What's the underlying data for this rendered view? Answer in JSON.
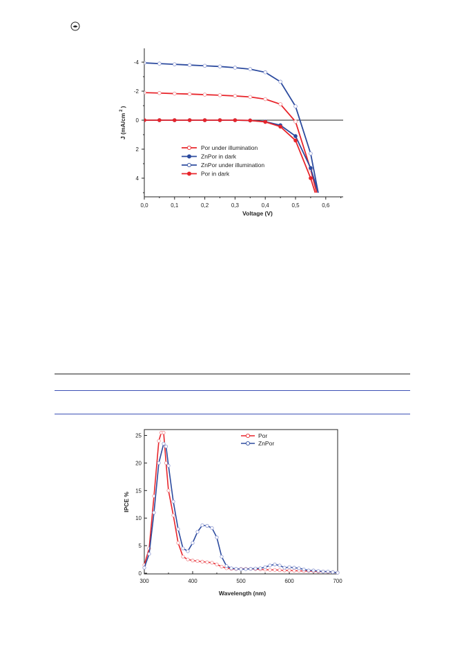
{
  "chart_data": [
    {
      "type": "line",
      "xlabel": "Voltage (V)",
      "ylabel": "J (mA/cm",
      "ylabel_sup": "2",
      "ylabel_close": ")",
      "xlim": [
        0.0,
        0.65
      ],
      "ylim": [
        5,
        -5
      ],
      "x_ticks": [
        "0,0",
        "0,1",
        "0,2",
        "0,3",
        "0,4",
        "0,5",
        "0,6"
      ],
      "y_ticks": [
        "-4",
        "-2",
        "0",
        "2",
        "4"
      ],
      "legend_position": "lower-left",
      "legend": [
        "Por under illumination",
        "ZnPor in dark",
        "ZnPor under illumination",
        "Por in dark"
      ],
      "series": [
        {
          "name": "Por under illumination",
          "color": "#e8242a",
          "marker": "open",
          "x": [
            0.0,
            0.05,
            0.1,
            0.15,
            0.2,
            0.25,
            0.3,
            0.35,
            0.4,
            0.45,
            0.5,
            0.55,
            0.57
          ],
          "y": [
            -1.9,
            -1.87,
            -1.83,
            -1.8,
            -1.76,
            -1.72,
            -1.67,
            -1.6,
            -1.45,
            -1.1,
            0.1,
            3.4,
            5.0
          ]
        },
        {
          "name": "ZnPor in dark",
          "color": "#2b4a9e",
          "marker": "filled",
          "x": [
            0.0,
            0.05,
            0.1,
            0.15,
            0.2,
            0.25,
            0.3,
            0.35,
            0.4,
            0.45,
            0.5,
            0.55,
            0.575
          ],
          "y": [
            0.0,
            0.0,
            0.0,
            0.0,
            0.0,
            0.0,
            0.0,
            0.02,
            0.1,
            0.35,
            1.1,
            3.3,
            5.0
          ]
        },
        {
          "name": "ZnPor under illumination",
          "color": "#2b4a9e",
          "marker": "open",
          "x": [
            0.0,
            0.05,
            0.1,
            0.15,
            0.2,
            0.25,
            0.3,
            0.35,
            0.4,
            0.45,
            0.5,
            0.55,
            0.575
          ],
          "y": [
            -3.95,
            -3.9,
            -3.85,
            -3.8,
            -3.75,
            -3.7,
            -3.62,
            -3.52,
            -3.3,
            -2.65,
            -0.95,
            2.3,
            5.0
          ]
        },
        {
          "name": "Por in dark",
          "color": "#e8242a",
          "marker": "filled",
          "x": [
            0.0,
            0.05,
            0.1,
            0.15,
            0.2,
            0.25,
            0.3,
            0.35,
            0.4,
            0.45,
            0.5,
            0.55,
            0.565
          ],
          "y": [
            0.0,
            0.0,
            0.0,
            0.0,
            0.0,
            0.0,
            0.0,
            0.02,
            0.12,
            0.45,
            1.4,
            4.0,
            5.0
          ]
        }
      ]
    },
    {
      "type": "line",
      "xlabel": "Wavelength (nm)",
      "ylabel": "IPCE %",
      "xlim": [
        300,
        700
      ],
      "ylim": [
        0,
        26
      ],
      "x_ticks": [
        "300",
        "400",
        "500",
        "600",
        "700"
      ],
      "y_ticks": [
        "0",
        "5",
        "10",
        "15",
        "20",
        "25"
      ],
      "legend_position": "top-right",
      "legend": [
        "Por",
        "ZnPor"
      ],
      "series": [
        {
          "name": "Por",
          "color": "#e8242a",
          "marker": "open",
          "x": [
            300,
            310,
            320,
            330,
            335,
            340,
            345,
            350,
            360,
            370,
            380,
            390,
            400,
            410,
            420,
            430,
            440,
            450,
            460,
            470,
            480,
            490,
            500,
            510,
            520,
            530,
            540,
            550,
            560,
            570,
            580,
            590,
            600,
            610,
            620,
            630,
            640,
            650,
            660,
            670,
            680,
            690,
            700
          ],
          "y": [
            1.5,
            4.5,
            14.0,
            24.0,
            25.5,
            25.5,
            20.0,
            15.0,
            10.5,
            5.5,
            3.0,
            2.5,
            2.3,
            2.2,
            2.1,
            2.0,
            1.9,
            1.6,
            1.2,
            0.9,
            0.8,
            0.75,
            0.8,
            0.8,
            0.8,
            0.75,
            0.7,
            0.65,
            0.6,
            0.6,
            0.55,
            0.5,
            0.5,
            0.45,
            0.45,
            0.4,
            0.4,
            0.35,
            0.3,
            0.3,
            0.25,
            0.2,
            0.1
          ]
        },
        {
          "name": "ZnPor",
          "color": "#2b4a9e",
          "marker": "open",
          "x": [
            300,
            310,
            320,
            330,
            340,
            345,
            350,
            360,
            370,
            380,
            390,
            400,
            410,
            420,
            430,
            440,
            450,
            460,
            470,
            480,
            490,
            500,
            510,
            520,
            530,
            540,
            550,
            560,
            570,
            580,
            590,
            600,
            610,
            620,
            630,
            640,
            650,
            660,
            670,
            680,
            690,
            700
          ],
          "y": [
            1.0,
            3.5,
            11.0,
            20.0,
            23.5,
            23.0,
            19.5,
            13.0,
            8.0,
            4.5,
            4.0,
            5.5,
            7.5,
            8.7,
            8.6,
            8.2,
            6.5,
            3.0,
            1.3,
            0.9,
            0.8,
            0.75,
            0.75,
            0.8,
            0.85,
            0.9,
            1.1,
            1.4,
            1.6,
            1.4,
            1.0,
            1.1,
            1.0,
            0.9,
            0.7,
            0.5,
            0.5,
            0.4,
            0.3,
            0.3,
            0.2,
            0.1
          ]
        }
      ]
    }
  ]
}
